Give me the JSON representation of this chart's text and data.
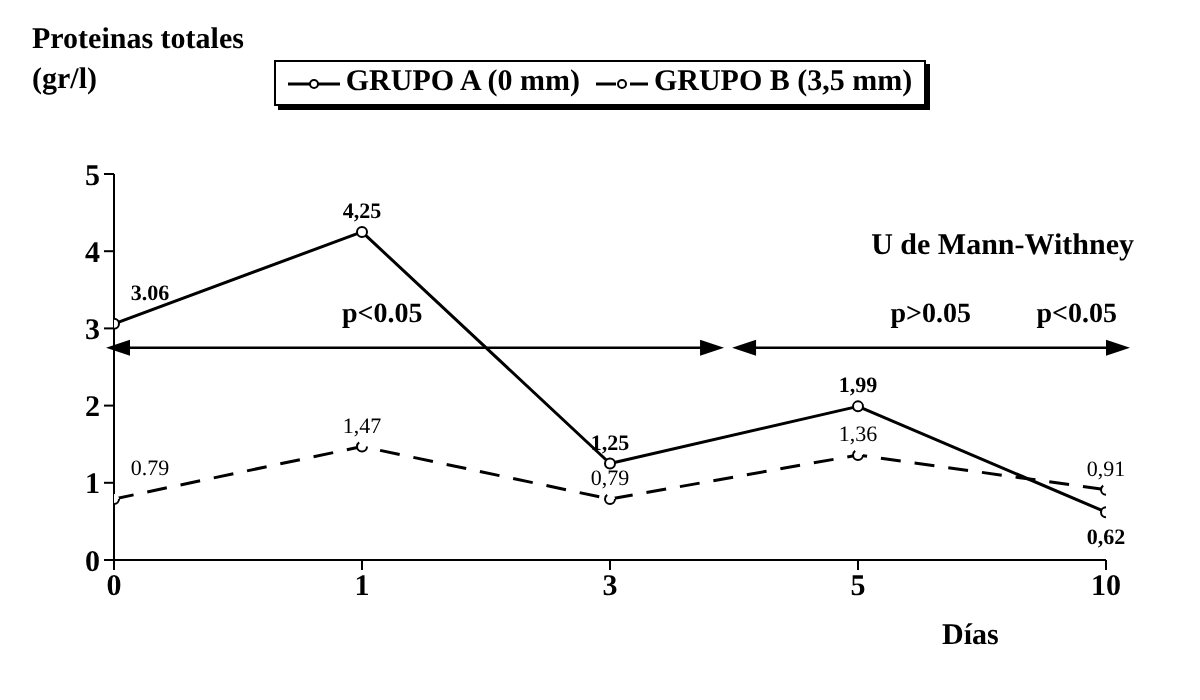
{
  "chart_data": {
    "type": "line",
    "ylabel": "Proteinas totales\n(gr/l)",
    "xlabel": "Días",
    "categories": [
      "0",
      "1",
      "3",
      "5",
      "10"
    ],
    "series": [
      {
        "name": "GRUPO A (0 mm)",
        "color": "#000000",
        "values": [
          3.06,
          4.25,
          1.25,
          1.99,
          0.62
        ],
        "value_labels": [
          "3.06",
          "4,25",
          "1,25",
          "1,99",
          "0,62"
        ],
        "line_style": "solid"
      },
      {
        "name": "GRUPO B (3,5 mm)",
        "color": "#000000",
        "values": [
          0.79,
          1.47,
          0.79,
          1.36,
          0.91
        ],
        "value_labels": [
          "0.79",
          "1,47",
          "0,79",
          "1,36",
          "0,91"
        ],
        "line_style": "dashed"
      }
    ],
    "ylim": [
      0,
      5
    ],
    "yticks": [
      0,
      1,
      2,
      3,
      4,
      5
    ],
    "grid": false,
    "legend": "top",
    "marker": "circle",
    "annotations": [
      "U de Mann-Withney",
      "p<0.05",
      "p>0.05",
      "p<0.05"
    ]
  }
}
